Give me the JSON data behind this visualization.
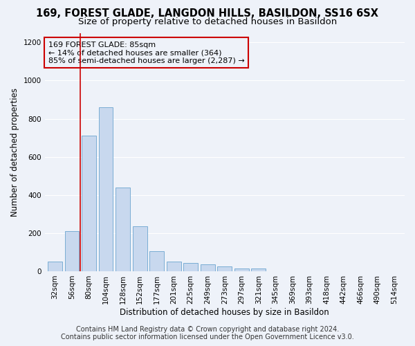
{
  "title": "169, FOREST GLADE, LANGDON HILLS, BASILDON, SS16 6SX",
  "subtitle": "Size of property relative to detached houses in Basildon",
  "xlabel": "Distribution of detached houses by size in Basildon",
  "ylabel": "Number of detached properties",
  "footer_line1": "Contains HM Land Registry data © Crown copyright and database right 2024.",
  "footer_line2": "Contains public sector information licensed under the Open Government Licence v3.0.",
  "annotation_title": "169 FOREST GLADE: 85sqm",
  "annotation_line1": "← 14% of detached houses are smaller (364)",
  "annotation_line2": "85% of semi-detached houses are larger (2,287) →",
  "bar_categories": [
    "32sqm",
    "56sqm",
    "80sqm",
    "104sqm",
    "128sqm",
    "152sqm",
    "177sqm",
    "201sqm",
    "225sqm",
    "249sqm",
    "273sqm",
    "297sqm",
    "321sqm",
    "345sqm",
    "369sqm",
    "393sqm",
    "418sqm",
    "442sqm",
    "466sqm",
    "490sqm",
    "514sqm"
  ],
  "bar_values": [
    50,
    210,
    710,
    860,
    440,
    235,
    105,
    50,
    45,
    35,
    25,
    15,
    15,
    0,
    0,
    0,
    0,
    0,
    0,
    0,
    0
  ],
  "bar_color": "#c8d8ee",
  "bar_edge_color": "#7aadd4",
  "vline_x_index": 1.5,
  "vline_color": "#cc0000",
  "annotation_box_color": "#cc0000",
  "ylim": [
    0,
    1250
  ],
  "yticks": [
    0,
    200,
    400,
    600,
    800,
    1000,
    1200
  ],
  "bg_color": "#eef2f9",
  "grid_color": "#ffffff",
  "title_fontsize": 10.5,
  "subtitle_fontsize": 9.5,
  "axis_label_fontsize": 8.5,
  "tick_fontsize": 7.5,
  "footer_fontsize": 7,
  "annotation_fontsize": 8
}
